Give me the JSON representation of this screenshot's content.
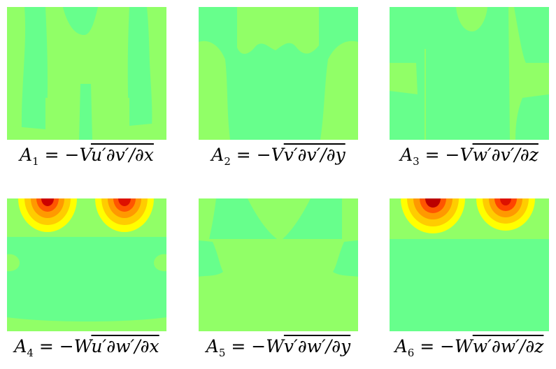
{
  "colors": {
    "base_green": "#67ff8c",
    "light_green": "#91ff67",
    "yellow": "#ffff00",
    "orange": "#ff9900",
    "red": "#ff2200",
    "dark_red": "#bb0000"
  },
  "panels": [
    {
      "var": "A",
      "sub": "1",
      "eq": " = −",
      "coef": "V",
      "bar": "u′∂v′/∂x"
    },
    {
      "var": "A",
      "sub": "2",
      "eq": " = −",
      "coef": "V",
      "bar": "v′∂v′/∂y"
    },
    {
      "var": "A",
      "sub": "3",
      "eq": " = −",
      "coef": "V",
      "bar": "w′∂v′/∂z"
    },
    {
      "var": "A",
      "sub": "4",
      "eq": " = −",
      "coef": "W",
      "bar": "u′∂w′/∂x"
    },
    {
      "var": "A",
      "sub": "5",
      "eq": " = −",
      "coef": "W",
      "bar": "v′∂w′/∂y"
    },
    {
      "var": "A",
      "sub": "6",
      "eq": " = −",
      "coef": "W",
      "bar": "w′∂w′/∂z"
    }
  ]
}
